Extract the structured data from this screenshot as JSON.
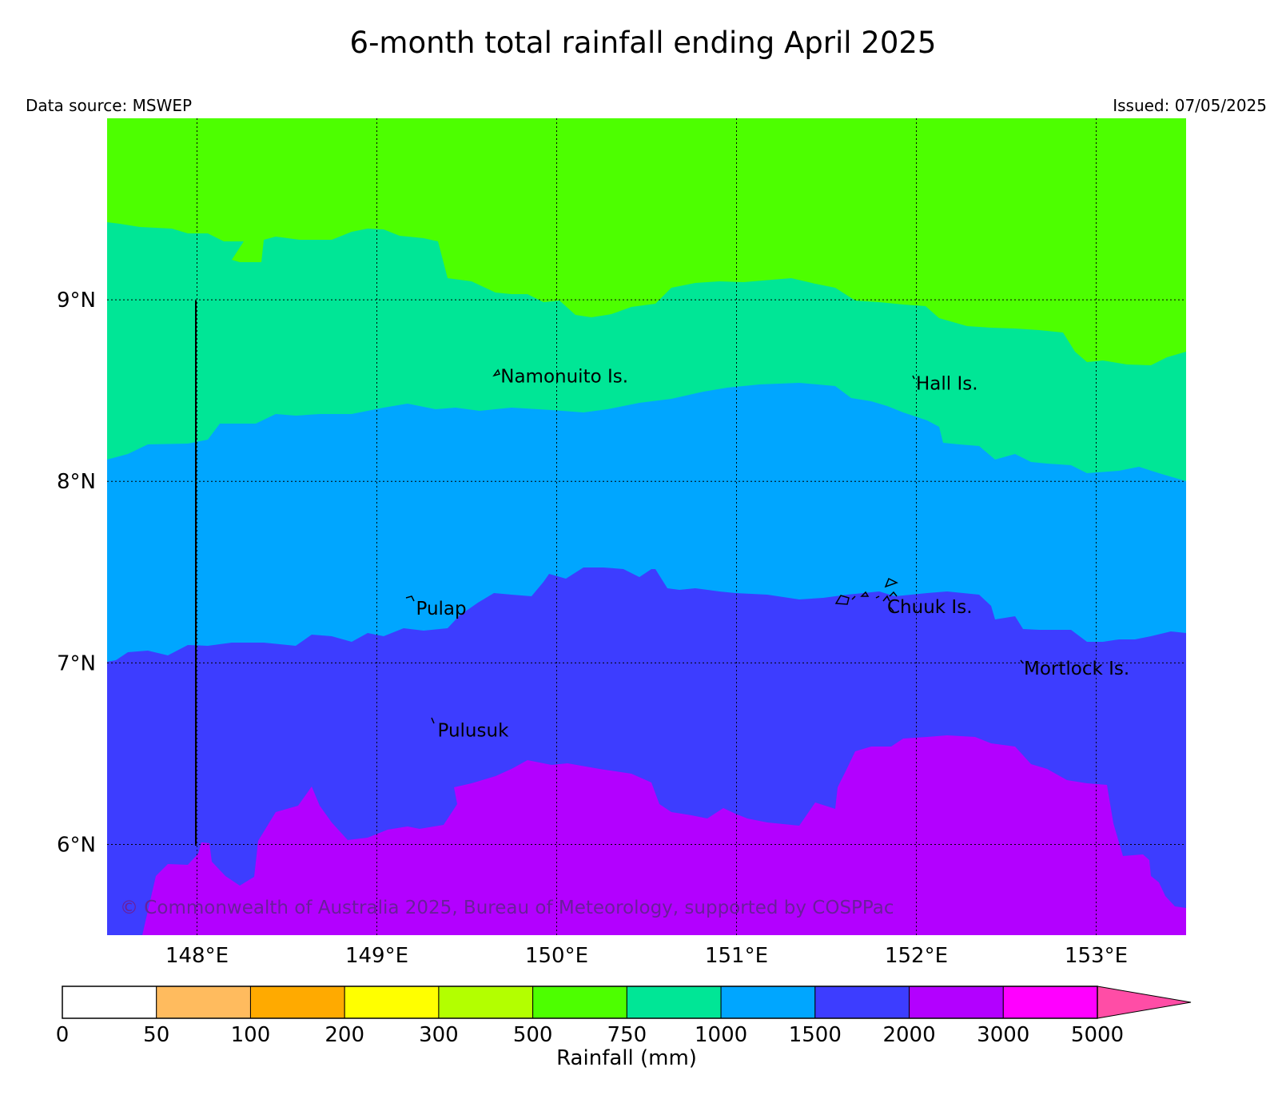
{
  "header": {
    "title": "6-month total rainfall ending April 2025",
    "data_source": "Data source: MSWEP",
    "issued": "Issued: 07/05/2025"
  },
  "map": {
    "lon_range": [
      147.5,
      153.5
    ],
    "lat_range": [
      5.5,
      10.0
    ],
    "lon_ticks": [
      {
        "value": 148,
        "label": "148°E"
      },
      {
        "value": 149,
        "label": "149°E"
      },
      {
        "value": 150,
        "label": "150°E"
      },
      {
        "value": 151,
        "label": "151°E"
      },
      {
        "value": 152,
        "label": "152°E"
      },
      {
        "value": 153,
        "label": "153°E"
      }
    ],
    "lat_ticks": [
      {
        "value": 9,
        "label": "9°N"
      },
      {
        "value": 8,
        "label": "8°N"
      },
      {
        "value": 7,
        "label": "7°N"
      },
      {
        "value": 6,
        "label": "6°N"
      }
    ],
    "grid": true,
    "places": [
      {
        "name": "Namonuito Is.",
        "lon": 149.67,
        "lat": 8.58
      },
      {
        "name": "Hall Is.",
        "lon": 151.98,
        "lat": 8.54
      },
      {
        "name": "Pulap",
        "lon": 149.2,
        "lat": 7.3
      },
      {
        "name": "Chuuk Is.",
        "lon": 151.82,
        "lat": 7.31
      },
      {
        "name": "Mortlock Is.",
        "lon": 152.58,
        "lat": 6.97
      },
      {
        "name": "Pulusuk",
        "lon": 149.32,
        "lat": 6.63
      }
    ],
    "copyright": "© Commonwealth of Australia 2025, Bureau of Meteorology, supported by COSPPac",
    "band_colors": {
      "500-750": "#4dff00",
      "750-1000": "#00e696",
      "1000-1500": "#00a6ff",
      "1500-2000": "#3d3dff",
      "2000-3000": "#b300ff"
    }
  },
  "colorbar": {
    "label": "Rainfall (mm)",
    "ticks": [
      "0",
      "50",
      "100",
      "200",
      "300",
      "500",
      "750",
      "1000",
      "1500",
      "2000",
      "3000",
      "5000"
    ],
    "colors": [
      "#ffffff",
      "#ffbb5e",
      "#ffaa00",
      "#ffff00",
      "#b3ff00",
      "#4dff00",
      "#00e696",
      "#00a6ff",
      "#3d3dff",
      "#b300ff",
      "#ff00ff"
    ],
    "extend_color": "#ff4da6"
  }
}
